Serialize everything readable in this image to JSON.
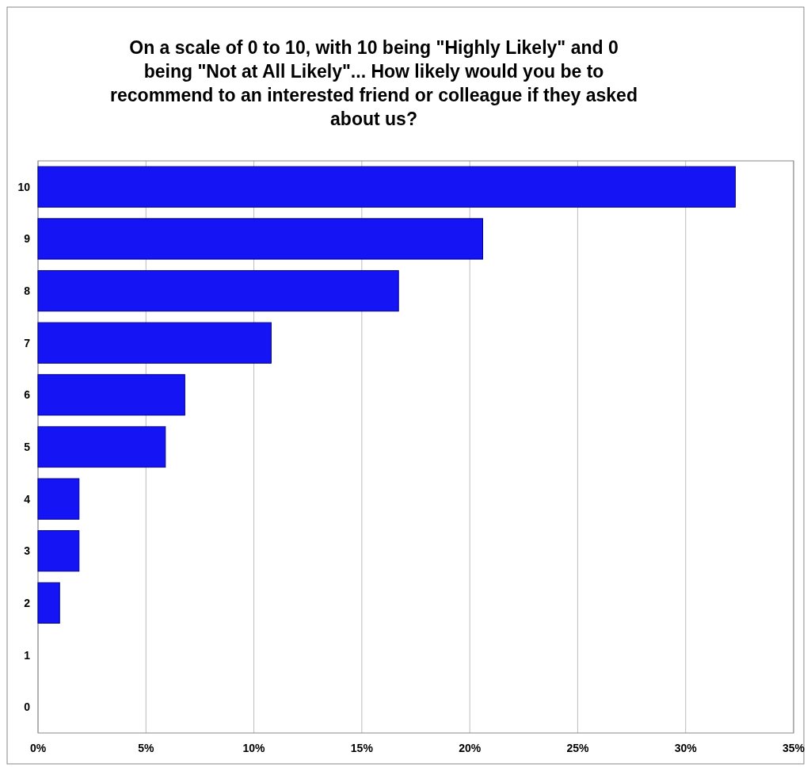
{
  "chart_data": {
    "type": "bar",
    "orientation": "horizontal",
    "title": "On a scale of 0 to 10, with 10 being \"Highly Likely\" and 0 being \"Not at All Likely\"... How likely would you be to recommend to an interested friend or colleague if they asked about us?",
    "categories": [
      "10",
      "9",
      "8",
      "7",
      "6",
      "5",
      "4",
      "3",
      "2",
      "1",
      "0"
    ],
    "values": [
      32.3,
      20.6,
      16.7,
      10.8,
      6.8,
      5.9,
      1.9,
      1.9,
      1,
      0,
      0
    ],
    "color": "#1414f5",
    "xlim": [
      0,
      35
    ],
    "xticks": [
      {
        "value": 0,
        "label": "0%"
      },
      {
        "value": 5,
        "label": "5%"
      },
      {
        "value": 10,
        "label": "10%"
      },
      {
        "value": 15,
        "label": "15%"
      },
      {
        "value": 20,
        "label": "20%"
      },
      {
        "value": 25,
        "label": "25%"
      },
      {
        "value": 30,
        "label": "30%"
      },
      {
        "value": 35,
        "label": "35%"
      }
    ],
    "grid": "x"
  }
}
